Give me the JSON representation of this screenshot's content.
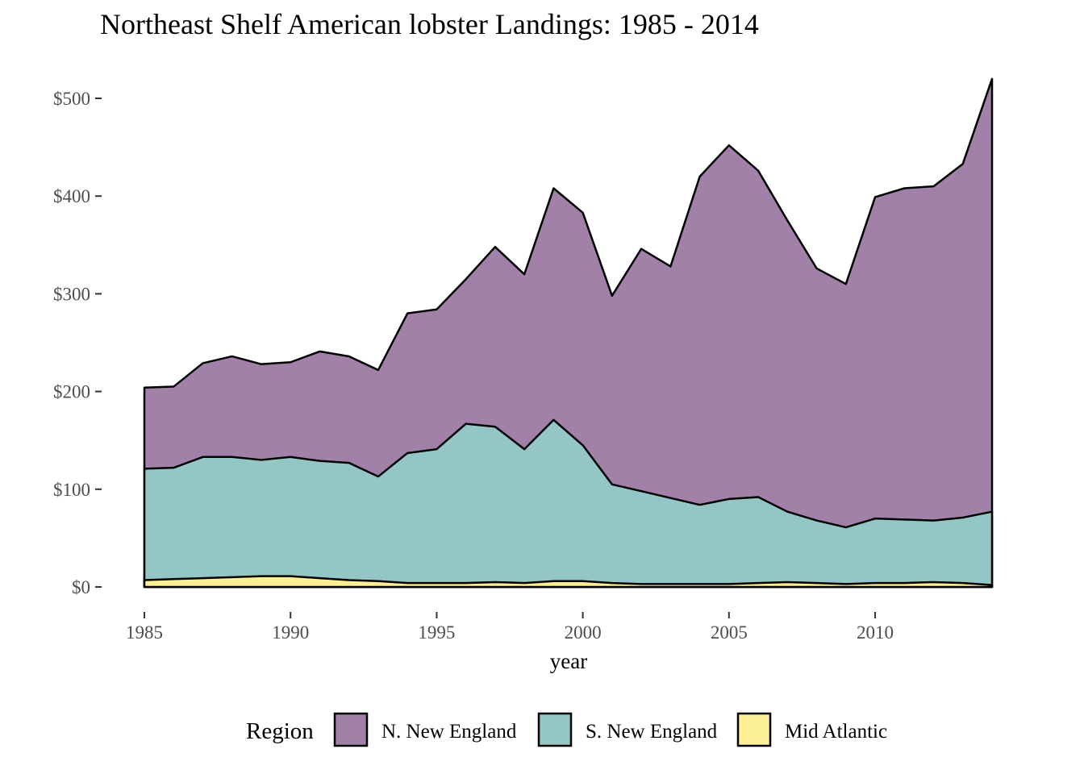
{
  "chart_data": {
    "type": "area",
    "stacked": true,
    "title": "Northeast Shelf American lobster Landings: 1985 - 2014",
    "xlabel": "year",
    "ylabel": "",
    "x": [
      1985,
      1986,
      1987,
      1988,
      1989,
      1990,
      1991,
      1992,
      1993,
      1994,
      1995,
      1996,
      1997,
      1998,
      1999,
      2000,
      2001,
      2002,
      2003,
      2004,
      2005,
      2006,
      2007,
      2008,
      2009,
      2010,
      2011,
      2012,
      2013,
      2014
    ],
    "xlim": [
      1985,
      2014
    ],
    "ylim": [
      0,
      500
    ],
    "x_ticks": [
      1985,
      1990,
      1995,
      2000,
      2005,
      2010
    ],
    "y_ticks": [
      0,
      100,
      200,
      300,
      400,
      500
    ],
    "y_tick_labels": [
      "$0",
      "$100",
      "$200",
      "$300",
      "$400",
      "$500"
    ],
    "grid": false,
    "legend_title": "Region",
    "legend_position": "bottom",
    "series": [
      {
        "name": "N. New England",
        "color": "#a281a9",
        "values": [
          83,
          83,
          96,
          103,
          98,
          97,
          112,
          109,
          109,
          143,
          143,
          148,
          184,
          179,
          237,
          238,
          193,
          248,
          237,
          336,
          362,
          334,
          298,
          258,
          249,
          329,
          339,
          342,
          362,
          443
        ]
      },
      {
        "name": "S. New England",
        "color": "#93c6c4",
        "values": [
          114,
          114,
          124,
          123,
          119,
          122,
          120,
          120,
          107,
          133,
          137,
          163,
          159,
          137,
          165,
          139,
          101,
          95,
          88,
          81,
          87,
          88,
          72,
          64,
          58,
          66,
          65,
          63,
          67,
          75
        ]
      },
      {
        "name": "Mid Atlantic",
        "color": "#fdef95",
        "values": [
          7,
          8,
          9,
          10,
          11,
          11,
          9,
          7,
          6,
          4,
          4,
          4,
          5,
          4,
          6,
          6,
          4,
          3,
          3,
          3,
          3,
          4,
          5,
          4,
          3,
          4,
          4,
          5,
          4,
          2
        ]
      }
    ]
  }
}
